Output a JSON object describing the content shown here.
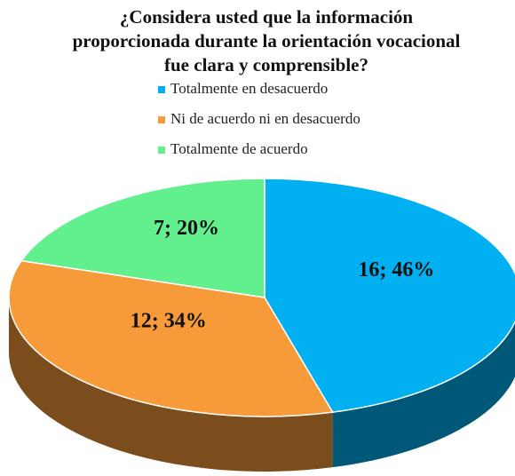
{
  "chart_data": {
    "type": "pie",
    "title": "¿Considera usted que la información proporcionada durante la orientación vocacional fue clara y comprensible?",
    "categories": [
      "Totalmente en desacuerdo",
      "Ni de acuerdo ni en desacuerdo",
      "Totalmente de acuerdo"
    ],
    "values": [
      16,
      12,
      7
    ],
    "value_labels": [
      "16; 46%",
      "12; 34%",
      "7; 20%"
    ],
    "colors": [
      "#00b0f0",
      "#f79a3a",
      "#62f08e"
    ],
    "legend": "top"
  }
}
